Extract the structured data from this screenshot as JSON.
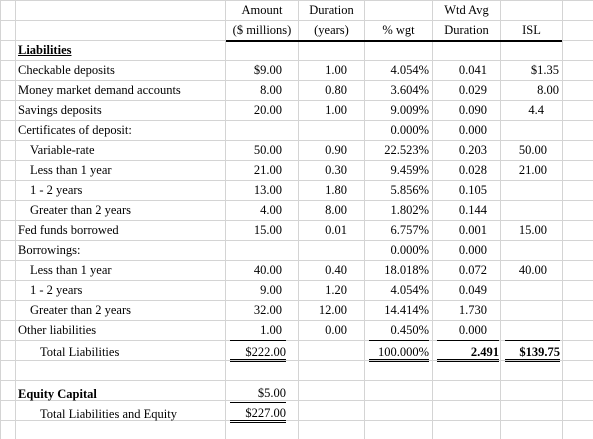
{
  "header": {
    "amount_line1": "Amount",
    "amount_line2": "($ millions)",
    "duration_line1": "Duration",
    "duration_line2": "(years)",
    "pct_wgt": "% wgt",
    "wtd_line1": "Wtd Avg",
    "wtd_line2": "Duration",
    "isl": "ISL"
  },
  "liabilities_heading": "Liabilities",
  "rows": [
    {
      "label": "Checkable deposits",
      "amount": "$9.00",
      "duration": "1.00",
      "pct": "4.054%",
      "wtd": "0.041",
      "isl": "$1.35"
    },
    {
      "label": "Money market demand accounts",
      "amount": "8.00",
      "duration": "0.80",
      "pct": "3.604%",
      "wtd": "0.029",
      "isl": "8.00"
    },
    {
      "label": "Savings deposits",
      "amount": "20.00",
      "duration": "1.00",
      "pct": "9.009%",
      "wtd": "0.090",
      "isl": "4.4"
    },
    {
      "label": "Certificates of deposit:",
      "amount": "",
      "duration": "",
      "pct": "0.000%",
      "wtd": "0.000",
      "isl": ""
    },
    {
      "label": "Variable-rate",
      "amount": "50.00",
      "duration": "0.90",
      "pct": "22.523%",
      "wtd": "0.203",
      "isl": "50.00"
    },
    {
      "label": "Less than 1 year",
      "amount": "21.00",
      "duration": "0.30",
      "pct": "9.459%",
      "wtd": "0.028",
      "isl": "21.00"
    },
    {
      "label": "1 - 2 years",
      "amount": "13.00",
      "duration": "1.80",
      "pct": "5.856%",
      "wtd": "0.105",
      "isl": ""
    },
    {
      "label": "Greater than 2 years",
      "amount": "4.00",
      "duration": "8.00",
      "pct": "1.802%",
      "wtd": "0.144",
      "isl": ""
    },
    {
      "label": "Fed funds borrowed",
      "amount": "15.00",
      "duration": "0.01",
      "pct": "6.757%",
      "wtd": "0.001",
      "isl": "15.00"
    },
    {
      "label": "Borrowings:",
      "amount": "",
      "duration": "",
      "pct": "0.000%",
      "wtd": "0.000",
      "isl": ""
    },
    {
      "label": "Less than 1 year",
      "amount": "40.00",
      "duration": "0.40",
      "pct": "18.018%",
      "wtd": "0.072",
      "isl": "40.00"
    },
    {
      "label": "1 - 2 years",
      "amount": "9.00",
      "duration": "1.20",
      "pct": "4.054%",
      "wtd": "0.049",
      "isl": ""
    },
    {
      "label": "Greater than 2 years",
      "amount": "32.00",
      "duration": "12.00",
      "pct": "14.414%",
      "wtd": "1.730",
      "isl": ""
    },
    {
      "label": "Other liabilities",
      "amount": "1.00",
      "duration": "0.00",
      "pct": "0.450%",
      "wtd": "0.000",
      "isl": ""
    }
  ],
  "total_liabilities": {
    "label": "Total Liabilities",
    "amount": "$222.00",
    "pct": "100.000%",
    "wtd": "2.491",
    "isl": "$139.75"
  },
  "equity": {
    "label": "Equity Capital",
    "amount": "$5.00"
  },
  "total_liab_equity": {
    "label": "Total Liabilities and Equity",
    "amount": "$227.00"
  }
}
